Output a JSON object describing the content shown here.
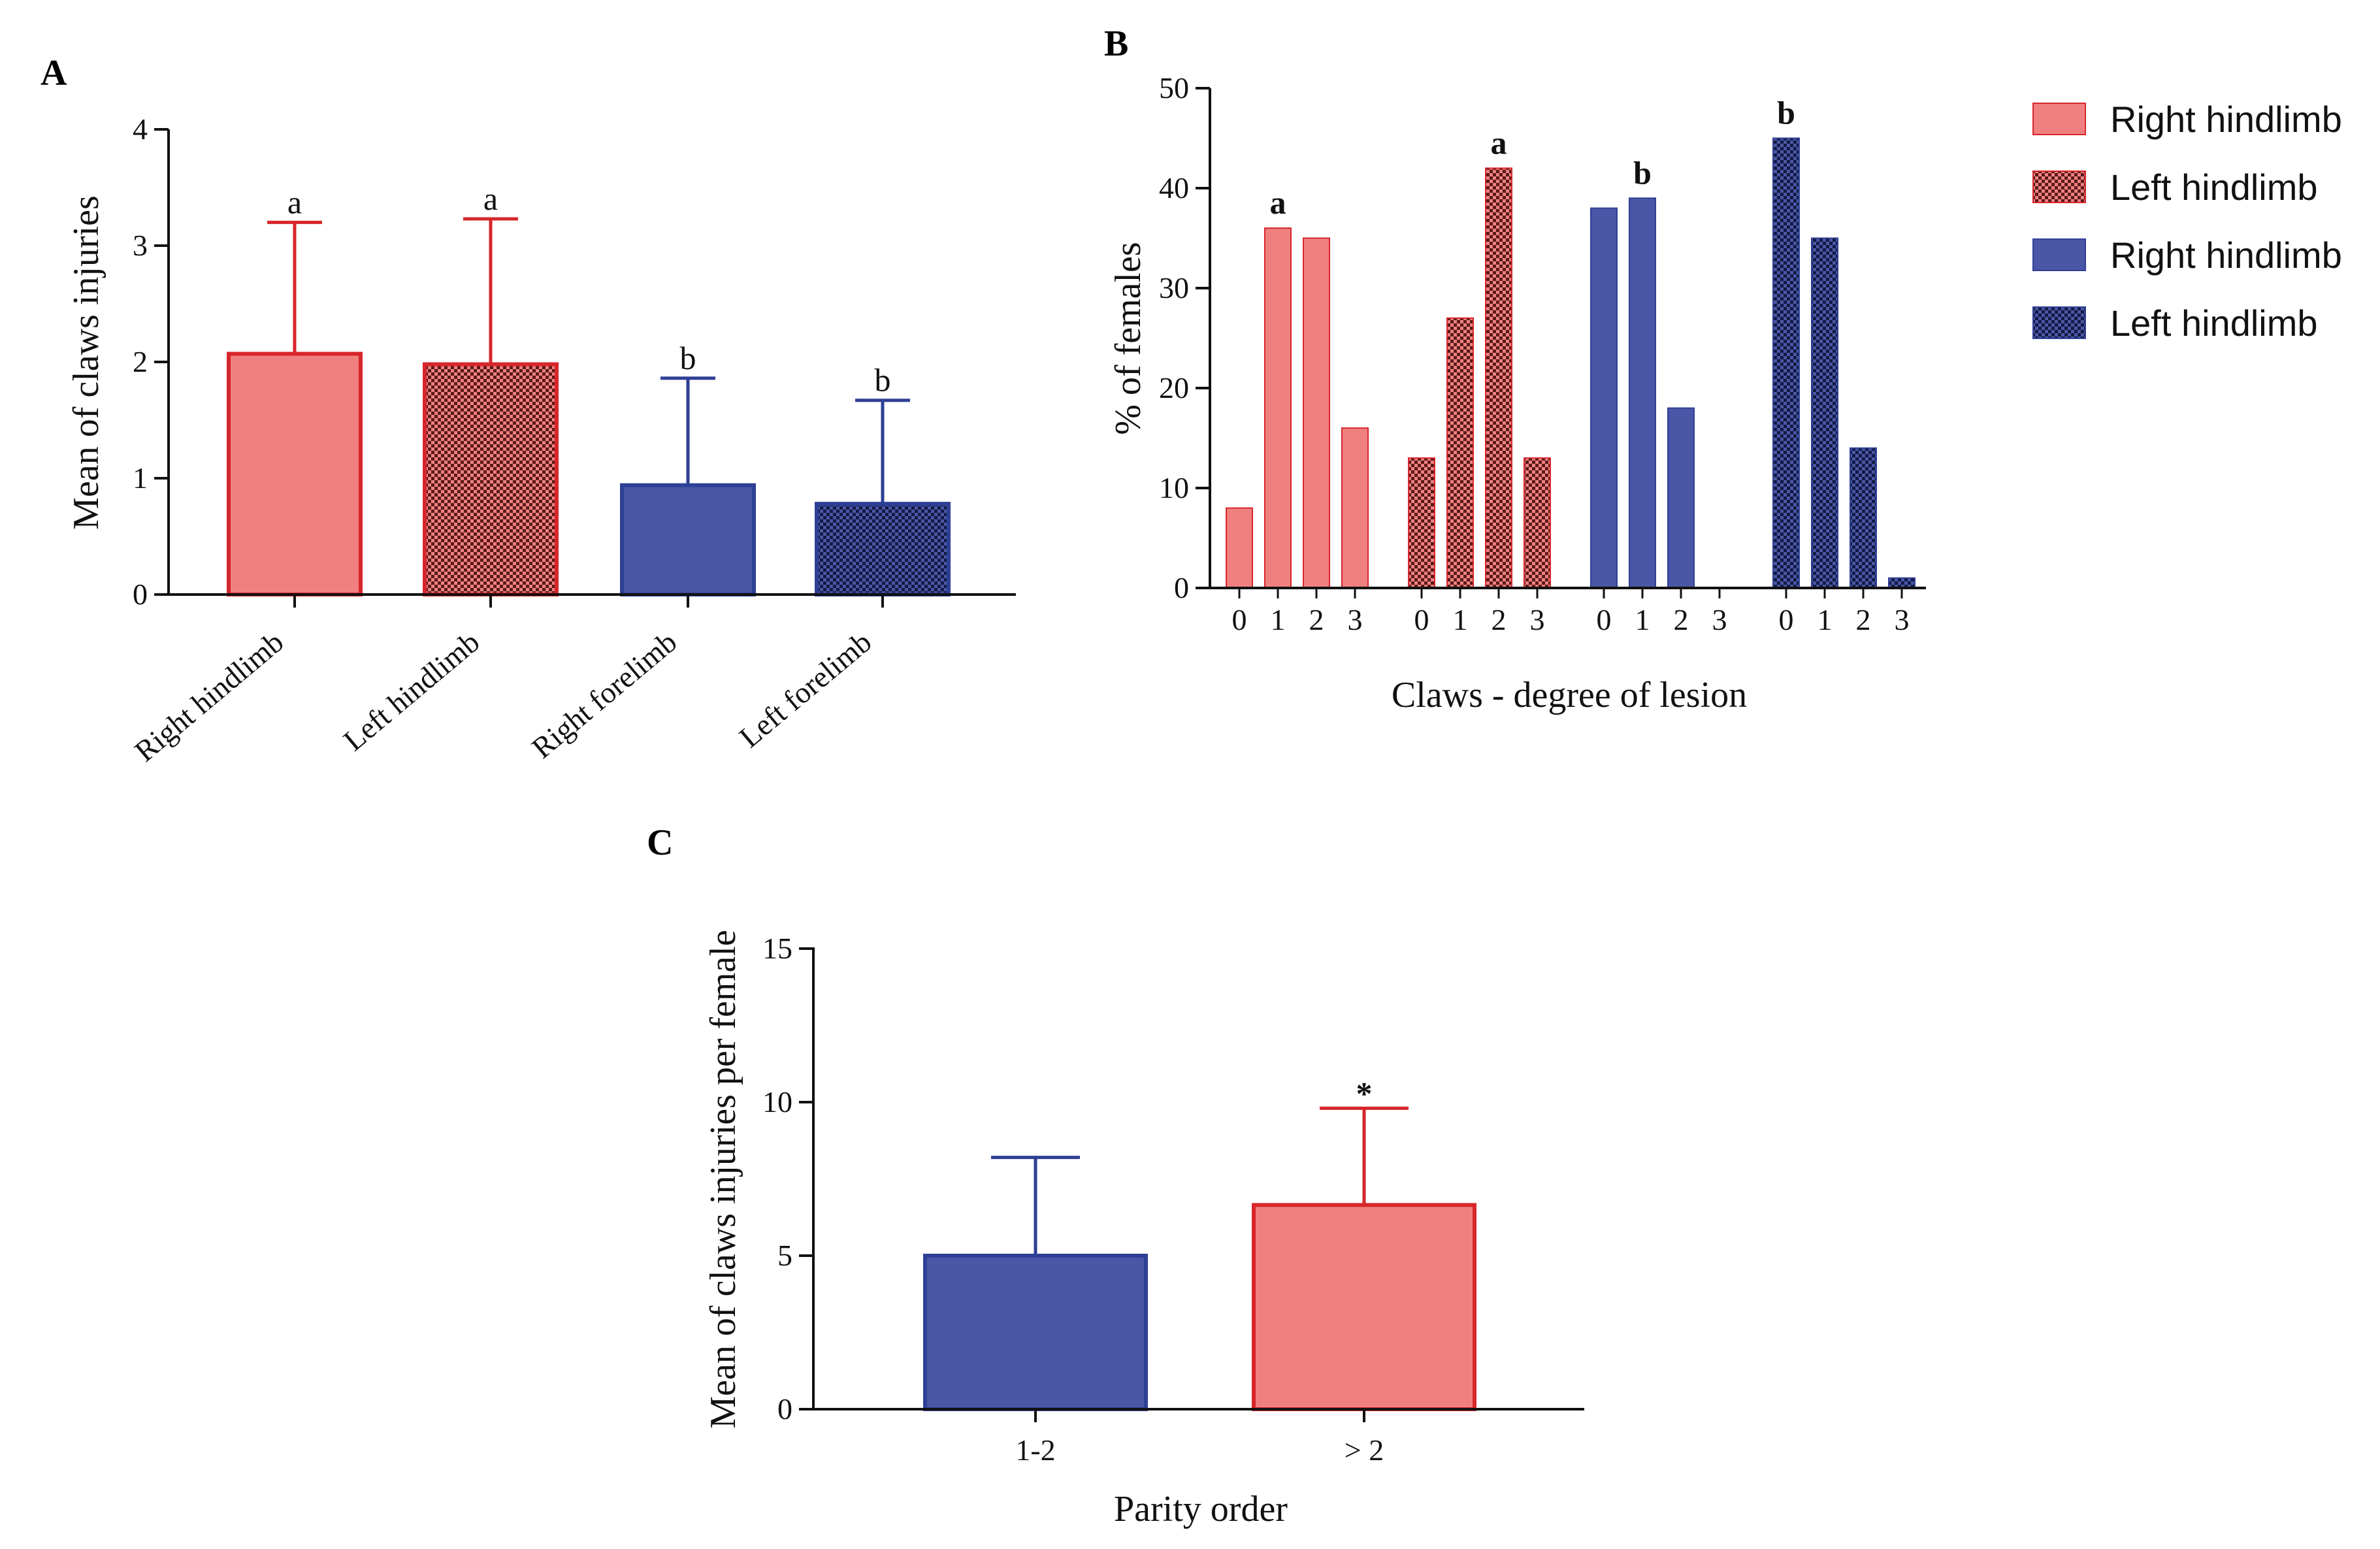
{
  "colors": {
    "pink_fill": "#F08080",
    "pink_edge": "#D7262B",
    "blue_fill": "#4A57A6",
    "blue_edge": "#2E3F96",
    "checker_dark": "#1E255A",
    "axis": "#111111"
  },
  "chart_data": [
    {
      "panel": "A",
      "type": "bar",
      "title": "",
      "xlabel": "",
      "ylabel": "Mean of claws injuries",
      "ylim": [
        0,
        4
      ],
      "yticks": [
        "0",
        "1",
        "2",
        "3",
        "4"
      ],
      "categories": [
        "Right hindlimb",
        "Left hindlimb",
        "Right forelimb",
        "Left forelimb"
      ],
      "values": [
        2.07,
        1.98,
        0.94,
        0.78
      ],
      "errors": [
        1.13,
        1.25,
        0.92,
        0.89
      ],
      "significance": [
        "a",
        "a",
        "b",
        "b"
      ],
      "styles": [
        "pink-solid",
        "pink-checker",
        "blue-solid",
        "blue-checker"
      ]
    },
    {
      "panel": "B",
      "type": "bar",
      "title": "",
      "xlabel": "Claws - degree of lesion",
      "ylabel": "% of females",
      "ylim": [
        0,
        50
      ],
      "yticks": [
        "0",
        "10",
        "20",
        "30",
        "40",
        "50"
      ],
      "categories": [
        "0",
        "1",
        "2",
        "3"
      ],
      "series": [
        {
          "name": "Right hindlimb",
          "style": "pink-solid",
          "values": [
            8,
            36,
            35,
            16
          ],
          "significance": "a"
        },
        {
          "name": "Left hindlimb",
          "style": "pink-checker",
          "values": [
            13,
            27,
            42,
            13
          ],
          "significance": "a"
        },
        {
          "name": "Right hindlimb",
          "style": "blue-solid",
          "values": [
            38,
            39,
            18,
            0
          ],
          "significance": "b"
        },
        {
          "name": "Left hindlimb",
          "style": "blue-checker",
          "values": [
            45,
            35,
            14,
            1
          ],
          "significance": "b"
        }
      ],
      "legend_position": "right"
    },
    {
      "panel": "C",
      "type": "bar",
      "title": "",
      "xlabel": "Parity order",
      "ylabel": "Mean of claws injuries per female",
      "ylim": [
        0,
        15
      ],
      "yticks": [
        "0",
        "5",
        "10",
        "15"
      ],
      "categories": [
        "1-2",
        "> 2"
      ],
      "values": [
        5.0,
        6.65
      ],
      "errors": [
        3.2,
        3.15
      ],
      "significance": [
        "",
        "*"
      ],
      "styles": [
        "blue-solid",
        "pink-solid"
      ]
    }
  ]
}
